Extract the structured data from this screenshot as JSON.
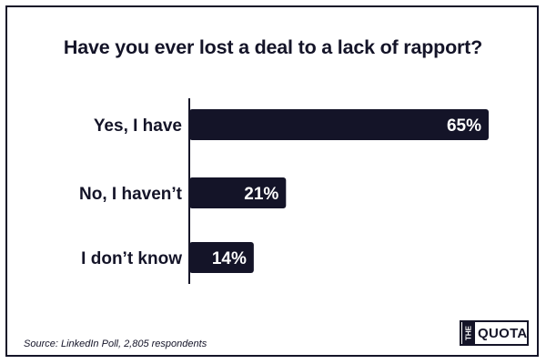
{
  "colors": {
    "bar": "#141428",
    "text": "#141428",
    "bar_label": "#ffffff",
    "background": "#ffffff"
  },
  "chart_data": {
    "type": "bar",
    "orientation": "horizontal",
    "title": "Have you ever lost a deal to a lack of rapport?",
    "categories": [
      "Yes, I have",
      "No, I haven’t",
      "I don’t know"
    ],
    "values": [
      65,
      21,
      14
    ],
    "value_labels": [
      "65%",
      "21%",
      "14%"
    ],
    "xlim": [
      0,
      65
    ],
    "grid": false,
    "legend": "none"
  },
  "footer": {
    "source": "Source: LinkedIn Poll, 2,805 respondents",
    "logo_the": "THE",
    "logo_quota": "QUOTA"
  }
}
